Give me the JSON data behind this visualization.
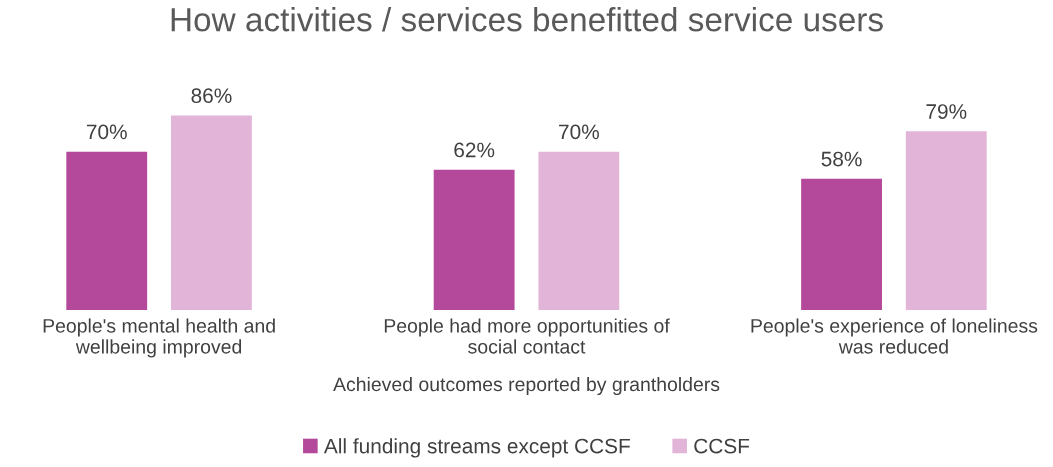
{
  "chart_data": {
    "type": "bar",
    "title": "How activities / services benefitted service users",
    "xlabel": "Achieved outcomes reported by grantholders",
    "categories": [
      "People's mental health and\nwellbeing improved",
      "People had more opportunities of\nsocial contact",
      "People's experience of loneliness\nwas reduced"
    ],
    "series": [
      {
        "name": "All funding streams except CCSF",
        "color": "#b4489a",
        "values": [
          70,
          62,
          58
        ],
        "value_labels": [
          "70%",
          "62%",
          "58%"
        ]
      },
      {
        "name": "CCSF",
        "color": "#e2b5d8",
        "values": [
          86,
          70,
          79
        ],
        "value_labels": [
          "86%",
          "70%",
          "79%"
        ]
      }
    ],
    "legend": "bottom",
    "grid": false
  }
}
